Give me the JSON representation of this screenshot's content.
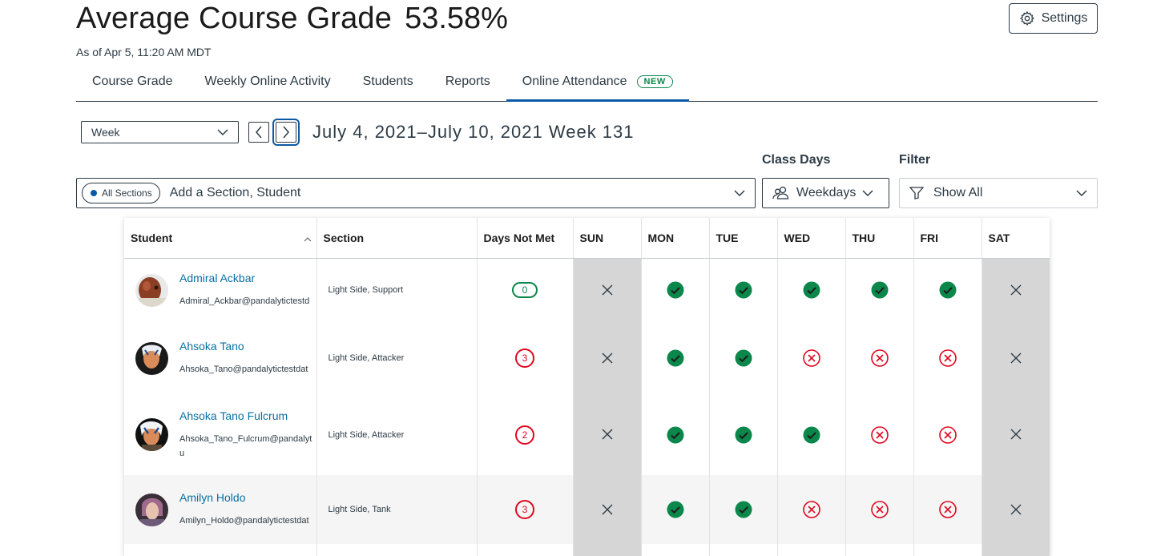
{
  "header": {
    "title": "Average Course Grade",
    "grade": "53.58%",
    "as_of": "As of Apr 5, 11:20 AM MDT",
    "settings_label": "Settings"
  },
  "tabs": [
    {
      "label": "Course Grade"
    },
    {
      "label": "Weekly Online Activity"
    },
    {
      "label": "Students"
    },
    {
      "label": "Reports"
    },
    {
      "label": "Online Attendance",
      "badge": "NEW",
      "active": true
    }
  ],
  "toolbar": {
    "period_select": "Week",
    "date_range": "July 4, 2021–July 10, 2021 Week 131"
  },
  "filters": {
    "section_pill": "All Sections",
    "search_placeholder": "Add a Section, Student",
    "class_days_label": "Class Days",
    "class_days_value": "Weekdays",
    "filter_label": "Filter",
    "filter_value": "Show All"
  },
  "table": {
    "columns": [
      "Student",
      "Section",
      "Days Not Met",
      "SUN",
      "MON",
      "TUE",
      "WED",
      "THU",
      "FRI",
      "SAT"
    ],
    "rows": [
      {
        "name": "Admiral Ackbar",
        "email": "Admiral_Ackbar@pandalytictestd",
        "section": "Light Side, Support",
        "days_not_met": "0",
        "days": [
          "off",
          "met",
          "met",
          "met",
          "met",
          "met",
          "off"
        ]
      },
      {
        "name": "Ahsoka Tano",
        "email": "Ahsoka_Tano@pandalytictestdat",
        "section": "Light Side, Attacker",
        "days_not_met": "3",
        "days": [
          "off",
          "met",
          "met",
          "missed",
          "missed",
          "missed",
          "off"
        ]
      },
      {
        "name": "Ahsoka Tano Fulcrum",
        "email": "Ahsoka_Tano_Fulcrum@pandalyt u",
        "section": "Light Side, Attacker",
        "days_not_met": "2",
        "days": [
          "off",
          "met",
          "met",
          "met",
          "missed",
          "missed",
          "off"
        ]
      },
      {
        "name": "Amilyn Holdo",
        "email": "Amilyn_Holdo@pandalytictestdat",
        "section": "Light Side, Tank",
        "days_not_met": "3",
        "days": [
          "off",
          "met",
          "met",
          "missed",
          "missed",
          "missed",
          "off"
        ]
      }
    ]
  },
  "colors": {
    "met": "#0b874b",
    "missed": "#e0061f",
    "link": "#0770a3",
    "accent": "#0c5aa6"
  },
  "icons": {
    "met": "check-circle-icon",
    "missed": "x-circle-icon",
    "off": "x-icon"
  }
}
